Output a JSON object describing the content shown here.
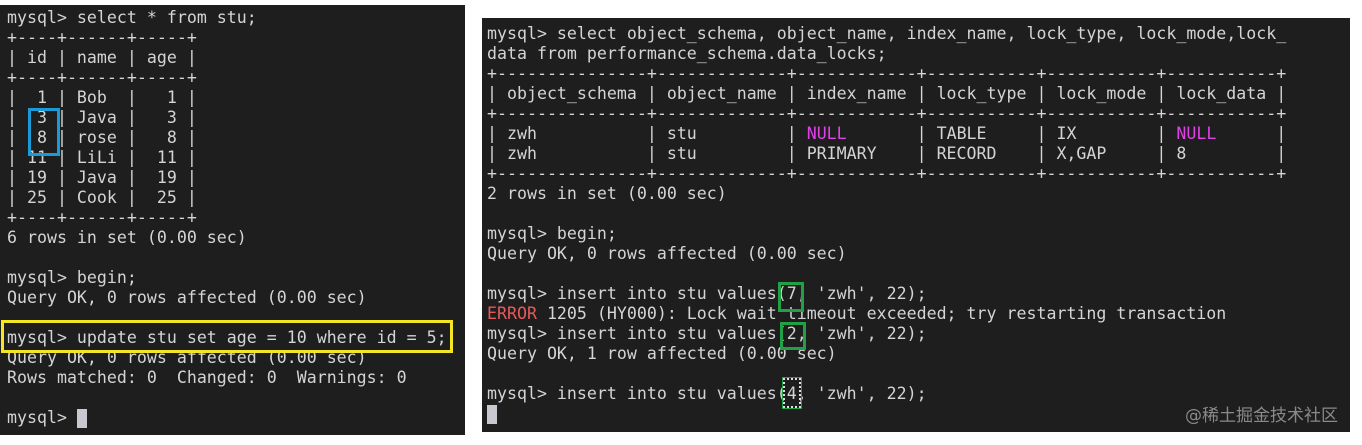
{
  "colors": {
    "background": "#1e1e1e",
    "text": "#d4d4d4",
    "null": "#e040e8",
    "error": "#e85a5a",
    "blue_box": "#1a9ad6",
    "yellow_box": "#f5e623",
    "green_box": "#22a046"
  },
  "left_terminal": {
    "lines": [
      [
        {
          "t": "mysql> select * from stu;"
        }
      ],
      [
        {
          "t": "+----+------+-----+"
        }
      ],
      [
        {
          "t": "| id | name | age |"
        }
      ],
      [
        {
          "t": "+----+------+-----+"
        }
      ],
      [
        {
          "t": "|  1 | Bob  |   1 |"
        }
      ],
      [
        {
          "t": "|  3 | Java |   3 |"
        }
      ],
      [
        {
          "t": "|  8 | rose |   8 |"
        }
      ],
      [
        {
          "t": "| 11 | LiLi |  11 |"
        }
      ],
      [
        {
          "t": "| 19 | Java |  19 |"
        }
      ],
      [
        {
          "t": "| 25 | Cook |  25 |"
        }
      ],
      [
        {
          "t": "+----+------+-----+"
        }
      ],
      [
        {
          "t": "6 rows in set (0.00 sec)"
        }
      ],
      [
        {
          "t": ""
        }
      ],
      [
        {
          "t": "mysql> begin;"
        }
      ],
      [
        {
          "t": "Query OK, 0 rows affected (0.00 sec)"
        }
      ],
      [
        {
          "t": ""
        }
      ],
      [
        {
          "t": "mysql> update stu set age = 10 where id = 5;"
        }
      ],
      [
        {
          "t": "Query OK, 0 rows affected (0.00 sec)"
        }
      ],
      [
        {
          "t": "Rows matched: 0  Changed: 0  Warnings: 0"
        }
      ],
      [
        {
          "t": ""
        }
      ],
      [
        {
          "t": "mysql> "
        },
        {
          "c": "cursor"
        }
      ]
    ]
  },
  "right_terminal": {
    "lines": [
      [
        {
          "t": "mysql> select object_schema, object_name, index_name, lock_type, lock_mode,lock_"
        }
      ],
      [
        {
          "t": "data from performance_schema.data_locks;"
        }
      ],
      [
        {
          "t": "+---------------+-------------+------------+-----------+-----------+-----------+"
        }
      ],
      [
        {
          "t": "| object_schema | object_name | index_name | lock_type | lock_mode | lock_data |"
        }
      ],
      [
        {
          "t": "+---------------+-------------+------------+-----------+-----------+-----------+"
        }
      ],
      [
        {
          "t": "| zwh           | stu         | "
        },
        {
          "t": "NULL",
          "c": "null"
        },
        {
          "t": "       | TABLE     | IX        | "
        },
        {
          "t": "NULL",
          "c": "null"
        },
        {
          "t": "      |"
        }
      ],
      [
        {
          "t": "| zwh           | stu         | PRIMARY    | RECORD    | X,GAP     | 8         |"
        }
      ],
      [
        {
          "t": "+---------------+-------------+------------+-----------+-----------+-----------+"
        }
      ],
      [
        {
          "t": "2 rows in set (0.00 sec)"
        }
      ],
      [
        {
          "t": ""
        }
      ],
      [
        {
          "t": "mysql> begin;"
        }
      ],
      [
        {
          "t": "Query OK, 0 rows affected (0.00 sec)"
        }
      ],
      [
        {
          "t": ""
        }
      ],
      [
        {
          "t": "mysql> insert into stu values(7, 'zwh', 22);"
        }
      ],
      [
        {
          "t": "ERROR",
          "c": "err"
        },
        {
          "t": " 1205 (HY000): Lock wait timeout exceeded; try restarting transaction"
        }
      ],
      [
        {
          "t": "mysql> insert into stu values(2, 'zwh', 22);"
        }
      ],
      [
        {
          "t": "Query OK, 1 row affected (0.00 sec)"
        }
      ],
      [
        {
          "t": ""
        }
      ],
      [
        {
          "t": "mysql> insert into stu values(4, 'zwh', 22);"
        }
      ],
      [
        {
          "c": "cursor"
        }
      ]
    ],
    "watermark": "@稀土掘金技术社区"
  }
}
